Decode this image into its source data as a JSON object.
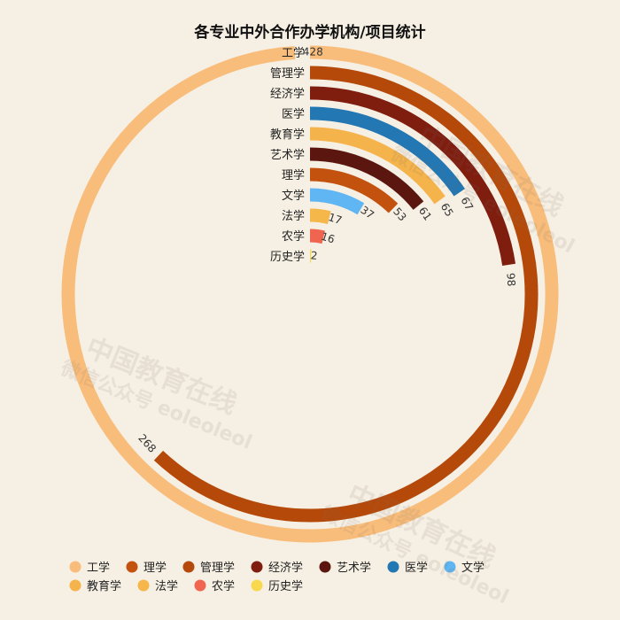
{
  "chart_data": {
    "type": "radial_bar",
    "title": "各专业中外合作办学机构/项目统计",
    "max_value": 428,
    "categories": [
      "工学",
      "管理学",
      "经济学",
      "医学",
      "教育学",
      "艺术学",
      "理学",
      "文学",
      "法学",
      "农学",
      "历史学"
    ],
    "values": [
      428,
      268,
      98,
      67,
      65,
      61,
      53,
      37,
      17,
      16,
      2
    ],
    "colors": [
      "#f9bd7b",
      "#b5490a",
      "#7f1d0f",
      "#2377b3",
      "#f5b34c",
      "#5b170f",
      "#c4520f",
      "#5fb6f2",
      "#f5b64a",
      "#f0654f",
      "#f8d84c"
    ]
  },
  "legend": {
    "items": [
      {
        "label": "工学",
        "color": "#f9bd7b"
      },
      {
        "label": "理学",
        "color": "#c4520f"
      },
      {
        "label": "管理学",
        "color": "#b5490a"
      },
      {
        "label": "经济学",
        "color": "#7f1d0f"
      },
      {
        "label": "艺术学",
        "color": "#5b170f"
      },
      {
        "label": "医学",
        "color": "#2377b3"
      },
      {
        "label": "文学",
        "color": "#5fb6f2"
      },
      {
        "label": "教育学",
        "color": "#f5b34c"
      },
      {
        "label": "法学",
        "color": "#f5b64a"
      },
      {
        "label": "农学",
        "color": "#f0654f"
      },
      {
        "label": "历史学",
        "color": "#f8d84c"
      }
    ]
  },
  "watermark": {
    "line1": "中国教育在线",
    "line2": "微信公众号 eoleoleol"
  }
}
